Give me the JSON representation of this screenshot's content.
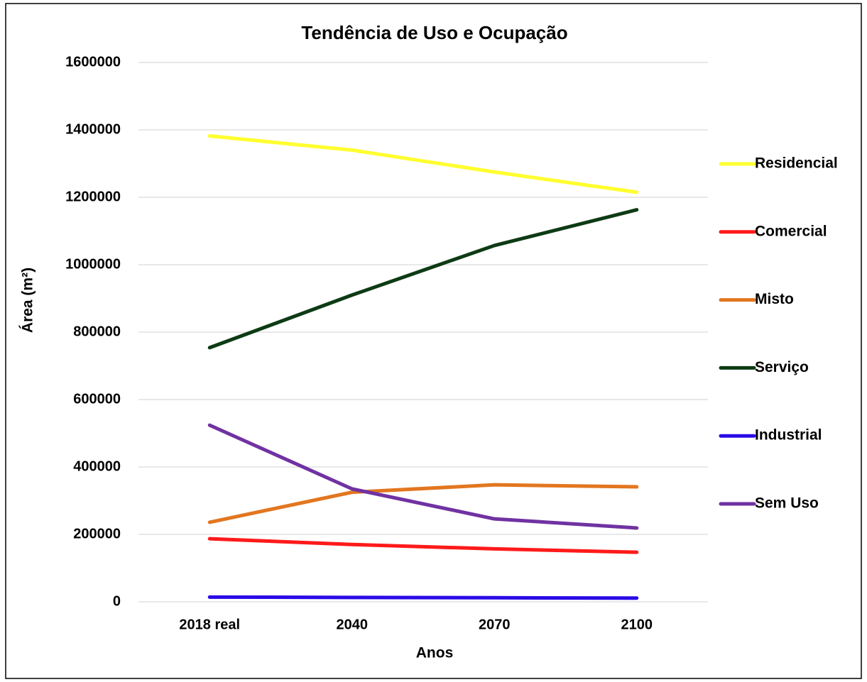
{
  "chart_data": {
    "type": "line",
    "title": "Tendência de Uso e Ocupação",
    "xlabel": "Anos",
    "ylabel": "Área (m²)",
    "categories": [
      "2018 real",
      "2040",
      "2070",
      "2100"
    ],
    "series": [
      {
        "name": "Residencial",
        "color": "#ffff2e",
        "values": [
          1382000,
          1340000,
          1275000,
          1215000
        ]
      },
      {
        "name": "Comercial",
        "color": "#ff1a1a",
        "values": [
          187000,
          170000,
          157000,
          147000
        ]
      },
      {
        "name": "Misto",
        "color": "#e2761f",
        "values": [
          236000,
          325000,
          347000,
          341000
        ]
      },
      {
        "name": "Serviço",
        "color": "#0d3b14",
        "values": [
          754000,
          910000,
          1057000,
          1163000
        ]
      },
      {
        "name": "Industrial",
        "color": "#2a0be6",
        "values": [
          14000,
          13000,
          12000,
          11000
        ]
      },
      {
        "name": "Sem Uso",
        "color": "#7032a2",
        "values": [
          524000,
          335000,
          246000,
          219000
        ]
      }
    ],
    "ylim": [
      0,
      1600000
    ],
    "yticks": [
      0,
      200000,
      400000,
      600000,
      800000,
      1000000,
      1200000,
      1400000,
      1600000
    ],
    "grid": true,
    "legend": "right"
  }
}
